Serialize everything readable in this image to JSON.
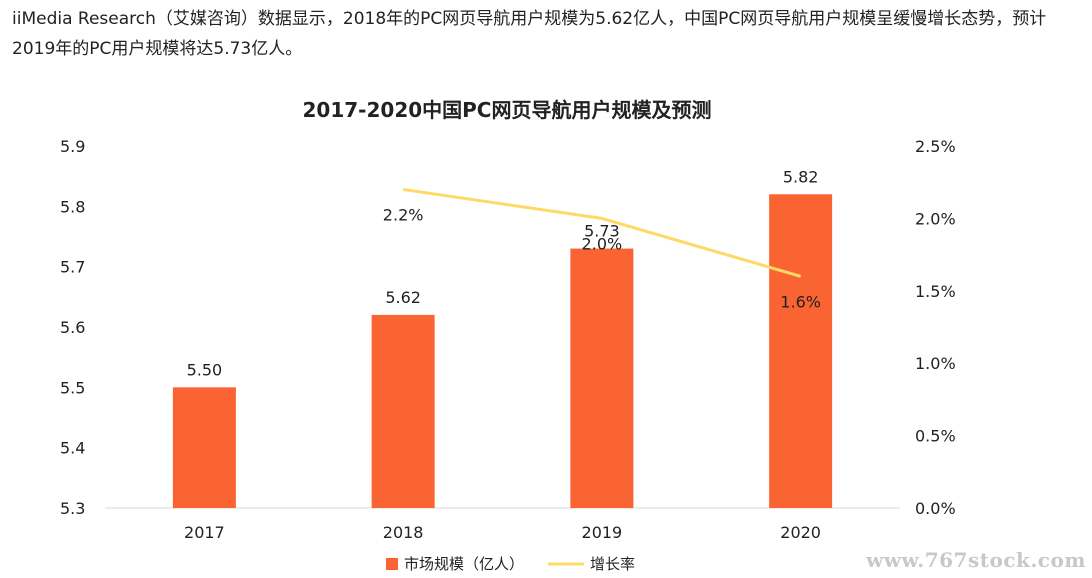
{
  "intro_text": "iiMedia Research（艾媒咨询）数据显示，2018年的PC网页导航用户规模为5.62亿人，中国PC网页导航用户规模呈缓慢增长态势，预计2019年的PC用户规模将达5.73亿人。",
  "watermark": "www.767stock.com",
  "colors": {
    "bar": "#fa6432",
    "line": "#ffd966",
    "axis": "#d9d9d9",
    "text": "#222222"
  },
  "chart_data": {
    "type": "bar",
    "title": "2017-2020中国PC网页导航用户规模及预测",
    "categories": [
      "2017",
      "2018",
      "2019",
      "2020"
    ],
    "series": [
      {
        "name": "市场规模（亿人）",
        "type": "bar",
        "axis": "left",
        "values": [
          5.5,
          5.62,
          5.73,
          5.82
        ],
        "labels": [
          "5.50",
          "5.62",
          "5.73",
          "5.82"
        ]
      },
      {
        "name": "增长率",
        "type": "line",
        "axis": "right",
        "values": [
          null,
          2.2,
          2.0,
          1.6
        ],
        "labels": [
          "",
          "2.2%",
          "2.0%",
          "1.6%"
        ]
      }
    ],
    "y_left": {
      "min": 5.3,
      "max": 5.9,
      "step": 0.1,
      "ticks": [
        "5.3",
        "5.4",
        "5.5",
        "5.6",
        "5.7",
        "5.8",
        "5.9"
      ]
    },
    "y_right": {
      "min": 0,
      "max": 2.5,
      "step": 0.5,
      "ticks": [
        "0.0%",
        "0.5%",
        "1.0%",
        "1.5%",
        "2.0%",
        "2.5%"
      ]
    },
    "grid": false,
    "legend": "bottom-center"
  }
}
